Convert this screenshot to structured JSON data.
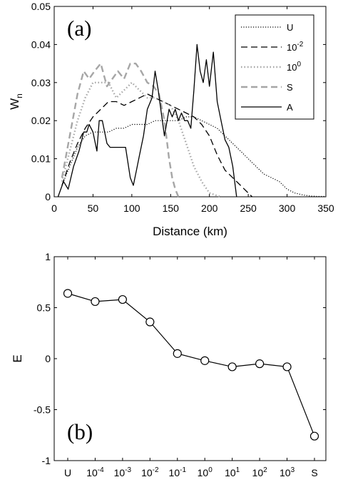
{
  "chart_data": [
    {
      "type": "line",
      "panel_label": "(a)",
      "xlabel": "Distance (km)",
      "ylabel": {
        "main": "W",
        "sub": "n"
      },
      "xlim": [
        0,
        350
      ],
      "ylim": [
        0,
        0.05
      ],
      "xticks": [
        0,
        50,
        100,
        150,
        200,
        250,
        300,
        350
      ],
      "xtick_labels": [
        "0",
        "50",
        "100",
        "150",
        "200",
        "250",
        "300",
        "350"
      ],
      "yticks": [
        0,
        0.01,
        0.02,
        0.03,
        0.04,
        0.05
      ],
      "ytick_labels": [
        "0",
        "0.01",
        "0.02",
        "0.03",
        "0.04",
        "0.05"
      ],
      "grid": false,
      "legend_position": "top-right",
      "series": [
        {
          "name": "U",
          "legend": {
            "main": "U",
            "sup": ""
          },
          "color": "#000000",
          "style": "dotted",
          "x": [
            10,
            20,
            30,
            40,
            50,
            60,
            70,
            80,
            90,
            100,
            110,
            120,
            130,
            140,
            150,
            160,
            170,
            180,
            190,
            200,
            210,
            220,
            230,
            240,
            250,
            260,
            270,
            280,
            290,
            300,
            310,
            320,
            330,
            340,
            350
          ],
          "y": [
            0.003,
            0.008,
            0.013,
            0.016,
            0.017,
            0.017,
            0.017,
            0.018,
            0.018,
            0.019,
            0.019,
            0.019,
            0.02,
            0.02,
            0.02,
            0.02,
            0.021,
            0.021,
            0.02,
            0.019,
            0.018,
            0.016,
            0.014,
            0.012,
            0.01,
            0.008,
            0.006,
            0.005,
            0.004,
            0.002,
            0.001,
            0.0005,
            0.0002,
            0.0001,
            0.0001
          ]
        },
        {
          "name": "10^-2",
          "legend": {
            "main": "10",
            "sup": "-2"
          },
          "color": "#000000",
          "style": "dashed",
          "x": [
            10,
            20,
            30,
            40,
            50,
            60,
            70,
            80,
            90,
            100,
            110,
            120,
            130,
            140,
            150,
            160,
            170,
            180,
            190,
            200,
            210,
            220,
            230,
            240,
            250,
            255
          ],
          "y": [
            0.003,
            0.009,
            0.014,
            0.018,
            0.021,
            0.023,
            0.025,
            0.025,
            0.024,
            0.025,
            0.026,
            0.027,
            0.026,
            0.025,
            0.024,
            0.023,
            0.022,
            0.021,
            0.019,
            0.016,
            0.011,
            0.007,
            0.005,
            0.003,
            0.001,
            0
          ]
        },
        {
          "name": "10^0",
          "legend": {
            "main": "10",
            "sup": "0"
          },
          "color": "#a6a6a6",
          "style": "dotted-thick",
          "x": [
            10,
            20,
            30,
            40,
            50,
            60,
            70,
            80,
            90,
            100,
            110,
            120,
            130,
            140,
            150,
            160,
            170,
            180,
            190,
            200,
            210,
            215
          ],
          "y": [
            0.004,
            0.012,
            0.02,
            0.026,
            0.03,
            0.03,
            0.03,
            0.026,
            0.028,
            0.03,
            0.028,
            0.026,
            0.026,
            0.025,
            0.024,
            0.02,
            0.014,
            0.008,
            0.004,
            0.001,
            0.0003,
            0
          ]
        },
        {
          "name": "S",
          "legend": {
            "main": "S",
            "sup": ""
          },
          "color": "#a6a6a6",
          "style": "dashed-thick",
          "x": [
            10,
            20,
            30,
            38,
            45,
            52,
            60,
            68,
            75,
            82,
            90,
            98,
            105,
            112,
            120,
            128,
            135,
            142,
            148,
            152,
            156,
            160
          ],
          "y": [
            0.005,
            0.016,
            0.027,
            0.033,
            0.031,
            0.033,
            0.035,
            0.029,
            0.031,
            0.033,
            0.031,
            0.035,
            0.035,
            0.033,
            0.03,
            0.029,
            0.027,
            0.02,
            0.01,
            0.005,
            0.002,
            0
          ]
        },
        {
          "name": "A",
          "legend": {
            "main": "A",
            "sup": ""
          },
          "color": "#000000",
          "style": "solid",
          "x": [
            5,
            12,
            18,
            25,
            32,
            38,
            42,
            45,
            50,
            55,
            58,
            62,
            68,
            72,
            78,
            85,
            92,
            98,
            102,
            106,
            110,
            115,
            120,
            126,
            130,
            134,
            138,
            142,
            148,
            152,
            156,
            160,
            164,
            168,
            172,
            176,
            180,
            184,
            188,
            192,
            196,
            200,
            205,
            210,
            215,
            220,
            225,
            230,
            235
          ],
          "y": [
            0,
            0.004,
            0.002,
            0.008,
            0.012,
            0.017,
            0.017,
            0.019,
            0.017,
            0.012,
            0.02,
            0.02,
            0.014,
            0.013,
            0.013,
            0.013,
            0.013,
            0.005,
            0.003,
            0.007,
            0.011,
            0.016,
            0.023,
            0.026,
            0.033,
            0.028,
            0.022,
            0.016,
            0.023,
            0.021,
            0.023,
            0.02,
            0.022,
            0.02,
            0.02,
            0.018,
            0.028,
            0.04,
            0.033,
            0.03,
            0.036,
            0.029,
            0.038,
            0.025,
            0.02,
            0.015,
            0.013,
            0.008,
            0
          ]
        }
      ]
    },
    {
      "type": "line",
      "panel_label": "(b)",
      "xlabel": "",
      "ylabel": "E",
      "ylim": [
        -1,
        1
      ],
      "yticks": [
        -1,
        -0.5,
        0,
        0.5,
        1
      ],
      "ytick_labels": [
        "-1",
        "-0.5",
        "0",
        "0.5",
        "1"
      ],
      "categories": [
        {
          "main": "U",
          "sup": ""
        },
        {
          "main": "10",
          "sup": "-4"
        },
        {
          "main": "10",
          "sup": "-3"
        },
        {
          "main": "10",
          "sup": "-2"
        },
        {
          "main": "10",
          "sup": "-1"
        },
        {
          "main": "10",
          "sup": "0"
        },
        {
          "main": "10",
          "sup": "1"
        },
        {
          "main": "10",
          "sup": "2"
        },
        {
          "main": "10",
          "sup": "3"
        },
        {
          "main": "S",
          "sup": ""
        }
      ],
      "grid": false,
      "marker": "circle",
      "color": "#000000",
      "values": [
        0.64,
        0.56,
        0.58,
        0.36,
        0.05,
        -0.02,
        -0.08,
        -0.05,
        -0.08,
        -0.76
      ]
    }
  ]
}
